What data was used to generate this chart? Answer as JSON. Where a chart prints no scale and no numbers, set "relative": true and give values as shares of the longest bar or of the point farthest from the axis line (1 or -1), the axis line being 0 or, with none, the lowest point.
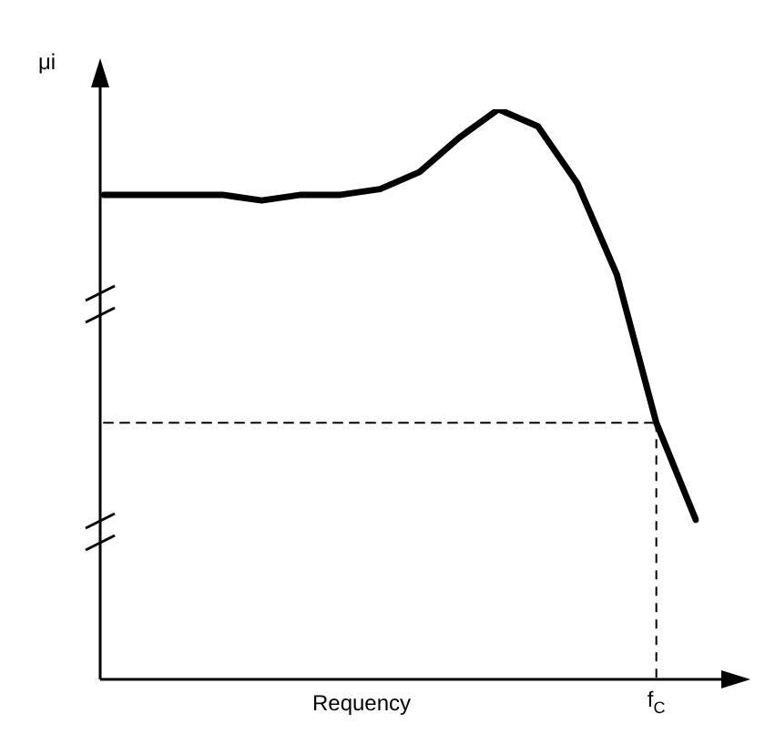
{
  "chart_data": {
    "type": "line",
    "relative": true,
    "xlabel": "Requency",
    "ylabel": "μi",
    "categories": [
      null,
      null,
      null,
      null,
      null,
      null,
      null,
      null,
      null,
      null,
      null,
      null,
      null,
      null,
      null,
      null
    ],
    "series": [
      {
        "color": "#000000",
        "values": [
          0.85,
          0.85,
          0.85,
          0.85,
          0.84,
          0.85,
          0.85,
          0.86,
          0.89,
          0.95,
          1,
          0.97,
          0.87,
          0.71,
          0.45,
          0.28
        ]
      },
      {
        "color": "#000000",
        "line_style": "dashed",
        "values": [
          0.45,
          0.45,
          0.45,
          0.45,
          0.45,
          0.45,
          0.45,
          0.45,
          0.45,
          0.45,
          0.45,
          0.45,
          0.45,
          0.45,
          0.45,
          null
        ]
      }
    ],
    "annotations": [
      "f$_{C}$"
    ],
    "marker": "none",
    "line_style": "solid"
  }
}
